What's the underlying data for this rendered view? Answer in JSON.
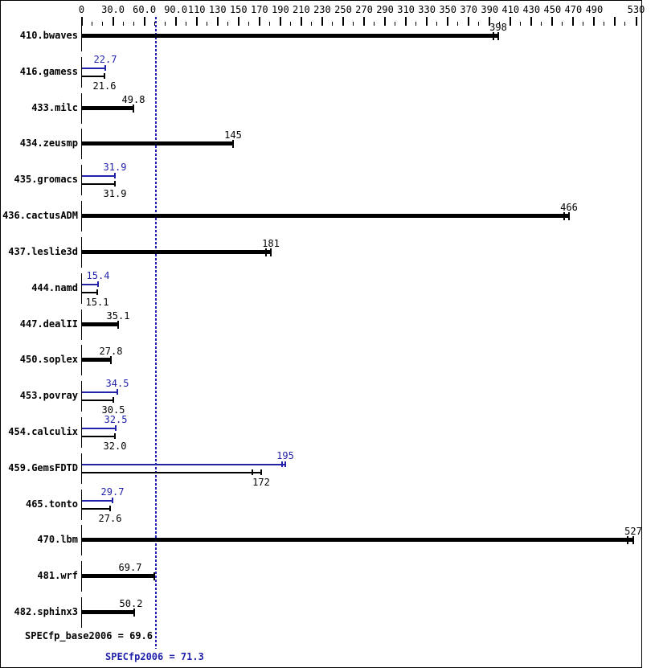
{
  "colors": {
    "base": "#000000",
    "peak": "#2222aa",
    "background": "#ffffff"
  },
  "chart_data": {
    "type": "bar",
    "orientation": "horizontal",
    "title": "",
    "xlabel": "",
    "ylabel": "",
    "axis": {
      "unit_min": 0,
      "unit_max": 530,
      "minor_tick_step": 10,
      "tall_tick_values": [
        0,
        30,
        60,
        90,
        110,
        130,
        150,
        170,
        190,
        210,
        230,
        250,
        270,
        290,
        310,
        330,
        350,
        370,
        390,
        410,
        430,
        450,
        470,
        490,
        510,
        530
      ],
      "labeled_ticks": [
        {
          "v": 0,
          "label": "0"
        },
        {
          "v": 30,
          "label": "30.0"
        },
        {
          "v": 60,
          "label": "60.0"
        },
        {
          "v": 90,
          "label": "90.0"
        },
        {
          "v": 110,
          "label": "110"
        },
        {
          "v": 130,
          "label": "130"
        },
        {
          "v": 150,
          "label": "150"
        },
        {
          "v": 170,
          "label": "170"
        },
        {
          "v": 190,
          "label": "190"
        },
        {
          "v": 210,
          "label": "210"
        },
        {
          "v": 230,
          "label": "230"
        },
        {
          "v": 250,
          "label": "250"
        },
        {
          "v": 270,
          "label": "270"
        },
        {
          "v": 290,
          "label": "290"
        },
        {
          "v": 310,
          "label": "310"
        },
        {
          "v": 330,
          "label": "330"
        },
        {
          "v": 350,
          "label": "350"
        },
        {
          "v": 370,
          "label": "370"
        },
        {
          "v": 390,
          "label": "390"
        },
        {
          "v": 410,
          "label": "410"
        },
        {
          "v": 430,
          "label": "430"
        },
        {
          "v": 450,
          "label": "450"
        },
        {
          "v": 470,
          "label": "470"
        },
        {
          "v": 490,
          "label": "490"
        },
        {
          "v": 530,
          "label": "530"
        }
      ]
    },
    "legend": {
      "base_series": "SPECfp_base2006",
      "peak_series": "SPECfp2006"
    },
    "benchmarks": [
      {
        "name": "410.bwaves",
        "base": {
          "value": 398,
          "label": "398",
          "marks": [
            394
          ]
        },
        "peak": null
      },
      {
        "name": "416.gamess",
        "base": {
          "value": 21.6,
          "label": "21.6"
        },
        "peak": {
          "value": 22.7,
          "label": "22.7"
        }
      },
      {
        "name": "433.milc",
        "base": {
          "value": 49.8,
          "label": "49.8"
        },
        "peak": null
      },
      {
        "name": "434.zeusmp",
        "base": {
          "value": 145,
          "label": "145"
        },
        "peak": null
      },
      {
        "name": "435.gromacs",
        "base": {
          "value": 31.9,
          "label": "31.9"
        },
        "peak": {
          "value": 31.9,
          "label": "31.9"
        }
      },
      {
        "name": "436.cactusADM",
        "base": {
          "value": 466,
          "label": "466",
          "marks": [
            461
          ]
        },
        "peak": null
      },
      {
        "name": "437.leslie3d",
        "base": {
          "value": 181,
          "label": "181",
          "marks": [
            176
          ]
        },
        "peak": null
      },
      {
        "name": "444.namd",
        "base": {
          "value": 15.1,
          "label": "15.1"
        },
        "peak": {
          "value": 15.4,
          "label": "15.4"
        }
      },
      {
        "name": "447.dealII",
        "base": {
          "value": 35.1,
          "label": "35.1"
        },
        "peak": null
      },
      {
        "name": "450.soplex",
        "base": {
          "value": 27.8,
          "label": "27.8"
        },
        "peak": null
      },
      {
        "name": "453.povray",
        "base": {
          "value": 30.5,
          "label": "30.5"
        },
        "peak": {
          "value": 34.5,
          "label": "34.5"
        }
      },
      {
        "name": "454.calculix",
        "base": {
          "value": 32.0,
          "label": "32.0"
        },
        "peak": {
          "value": 32.5,
          "label": "32.5"
        }
      },
      {
        "name": "459.GemsFDTD",
        "base": {
          "value": 172,
          "label": "172",
          "marks": [
            163
          ]
        },
        "peak": {
          "value": 195,
          "label": "195",
          "marks": [
            192
          ]
        }
      },
      {
        "name": "465.tonto",
        "base": {
          "value": 27.6,
          "label": "27.6"
        },
        "peak": {
          "value": 29.7,
          "label": "29.7"
        }
      },
      {
        "name": "470.lbm",
        "base": {
          "value": 527,
          "label": "527",
          "marks": [
            522
          ]
        },
        "peak": null
      },
      {
        "name": "481.wrf",
        "base": {
          "value": 69.7,
          "label": "69.7",
          "label_offset": -30
        },
        "peak": null
      },
      {
        "name": "482.sphinx3",
        "base": {
          "value": 50.2,
          "label": "50.2",
          "label_offset": -4
        },
        "peak": null
      }
    ],
    "reference_line": {
      "value": 71.3
    },
    "summary": {
      "base_text": "SPECfp_base2006 = 69.6",
      "base_value": 69.6,
      "peak_text": "SPECfp2006 = 71.3",
      "peak_value": 71.3
    }
  }
}
